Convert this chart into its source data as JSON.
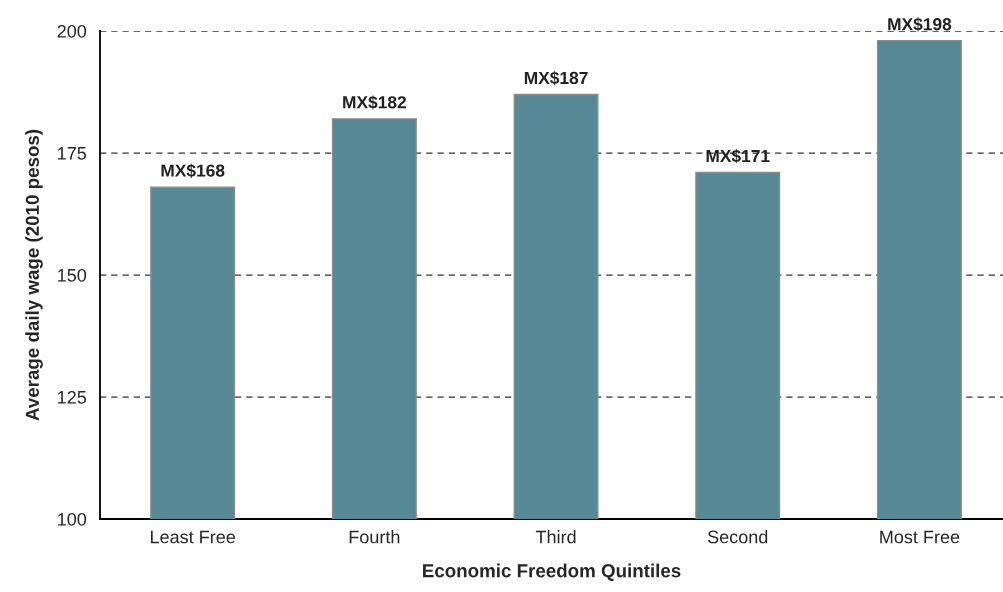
{
  "chart_data": {
    "type": "bar",
    "xlabel": "Economic Freedom Quintiles",
    "ylabel": "Average daily wage (2010 pesos)",
    "categories": [
      "Least Free",
      "Fourth",
      "Third",
      "Second",
      "Most Free"
    ],
    "values": [
      168,
      182,
      187,
      171,
      198
    ],
    "color": "#568896",
    "value_labels": [
      "MX$168",
      "MX$182",
      "MX$187",
      "MX$171",
      "MX$198"
    ],
    "ylim": [
      100,
      200
    ],
    "yticks": [
      100,
      125,
      150,
      175,
      200
    ],
    "grid": "y"
  }
}
